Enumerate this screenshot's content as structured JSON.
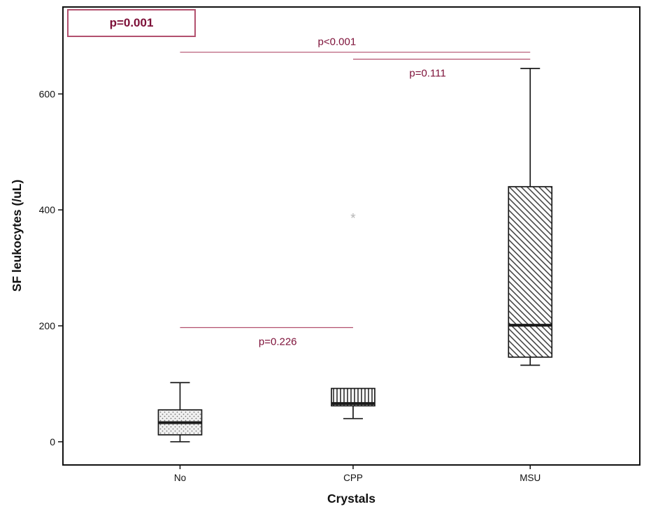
{
  "colors": {
    "annotation_text": "#7d1038",
    "annotation_line": "#b2506e",
    "significance_box_border": "#b2506e",
    "axis": "#111111",
    "box_stroke": "#1a1a1a",
    "outlier": "#b5b5b5",
    "background": "#ffffff"
  },
  "chart_data": {
    "type": "boxplot",
    "title": "",
    "xlabel": "Crystals",
    "ylabel": "SF leukocytes (/uL)",
    "ylim": [
      -40,
      750
    ],
    "yticks": [
      0,
      200,
      400,
      600
    ],
    "grid": false,
    "legend": false,
    "categories": [
      "No",
      "CPP",
      "MSU"
    ],
    "series": [
      {
        "category": "No",
        "pattern": "dots",
        "whisker_low": 0,
        "q1": 12,
        "median": 33,
        "q3": 55,
        "whisker_high": 102,
        "outliers": []
      },
      {
        "category": "CPP",
        "pattern": "vertical-stripes",
        "whisker_low": 40,
        "q1": 62,
        "median": 66,
        "q3": 92,
        "whisker_high": 92,
        "outliers": [
          {
            "value": 385,
            "symbol": "*"
          }
        ]
      },
      {
        "category": "MSU",
        "pattern": "diagonal-stripes",
        "whisker_low": 132,
        "q1": 146,
        "median": 201,
        "q3": 440,
        "whisker_high": 644,
        "outliers": []
      }
    ],
    "annotation_box": {
      "label": "p=0.001"
    },
    "comparisons": [
      {
        "label": "p<0.001",
        "from": "No",
        "to": "MSU",
        "line_y": 672,
        "label_above": true,
        "label_dx": -26
      },
      {
        "label": "p=0.111",
        "from": "CPP",
        "to": "MSU",
        "line_y": 660,
        "label_above": false,
        "label_dx": -20
      },
      {
        "label": "p=0.226",
        "from": "No",
        "to": "CPP",
        "line_y": 197,
        "label_above": false,
        "label_dx": 16
      }
    ]
  }
}
